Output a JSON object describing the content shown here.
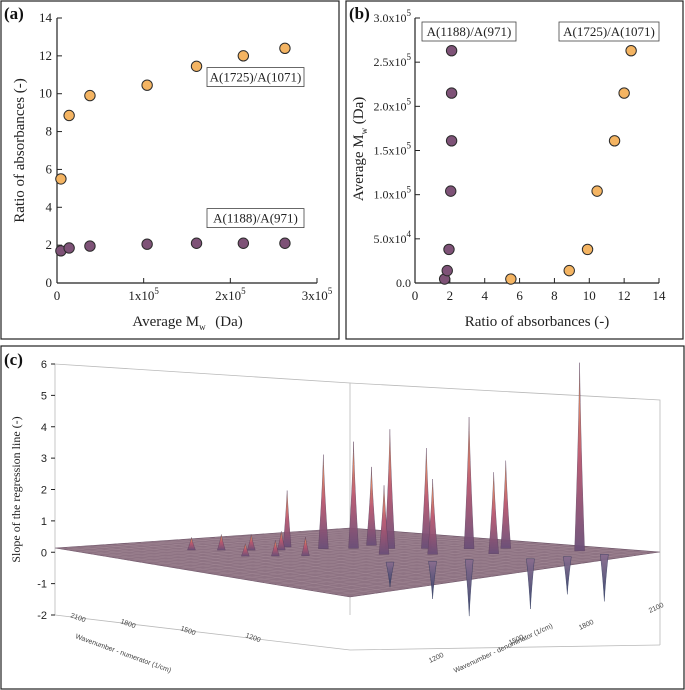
{
  "panels": {
    "a": "(a)",
    "b": "(b)",
    "c": "(c)"
  },
  "colors": {
    "orange": "#f4b462",
    "purple": "#7e5277",
    "marker_edge": "#2b2b2b"
  },
  "chart_data": [
    {
      "id": "a",
      "type": "scatter",
      "xlabel": "Average M",
      "xlabel_sub": "w",
      "xlabel_suffix": " (Da)",
      "ylabel": "Ratio of absorbances (-)",
      "xlim": [
        0,
        300000
      ],
      "ylim": [
        0,
        14
      ],
      "xticks": [
        {
          "v": 0,
          "base": "0",
          "exp": ""
        },
        {
          "v": 100000,
          "base": "1x10",
          "exp": "5"
        },
        {
          "v": 200000,
          "base": "2x10",
          "exp": "5"
        },
        {
          "v": 300000,
          "base": "3x10",
          "exp": "5"
        }
      ],
      "yticks": [
        0,
        2,
        4,
        6,
        8,
        10,
        12,
        14
      ],
      "series": [
        {
          "name": "A(1725)/A(1071)",
          "color": "orange",
          "x": [
            4500,
            14000,
            38000,
            104000,
            161000,
            215000,
            263000
          ],
          "y": [
            5.5,
            8.85,
            9.9,
            10.45,
            11.45,
            12.0,
            12.4
          ]
        },
        {
          "name": "A(1188)/A(971)",
          "color": "purple",
          "x": [
            4500,
            14000,
            38000,
            104000,
            161000,
            215000,
            263000
          ],
          "y": [
            1.7,
            1.85,
            1.95,
            2.05,
            2.1,
            2.1,
            2.1
          ]
        }
      ]
    },
    {
      "id": "b",
      "type": "scatter",
      "xlabel": "Ratio of absorbances (-)",
      "ylabel": "Average M",
      "ylabel_sub": "w",
      "ylabel_suffix": " (Da)",
      "xlim": [
        0,
        14
      ],
      "ylim": [
        0,
        300000
      ],
      "xticks": [
        0,
        2,
        4,
        6,
        8,
        10,
        12,
        14
      ],
      "yticks": [
        {
          "v": 0,
          "base": "0.0",
          "exp": ""
        },
        {
          "v": 50000,
          "base": "5.0x10",
          "exp": "4"
        },
        {
          "v": 100000,
          "base": "1.0x10",
          "exp": "5"
        },
        {
          "v": 150000,
          "base": "1.5x10",
          "exp": "5"
        },
        {
          "v": 200000,
          "base": "2.0x10",
          "exp": "5"
        },
        {
          "v": 250000,
          "base": "2.5x10",
          "exp": "5"
        },
        {
          "v": 300000,
          "base": "3.0x10",
          "exp": "5"
        }
      ],
      "series": [
        {
          "name": "A(1188)/A(971)",
          "color": "purple",
          "x": [
            1.7,
            1.85,
            1.95,
            2.05,
            2.1,
            2.1,
            2.1
          ],
          "y": [
            4500,
            14000,
            38000,
            104000,
            161000,
            215000,
            263000
          ]
        },
        {
          "name": "A(1725)/A(1071)",
          "color": "orange",
          "x": [
            5.5,
            8.85,
            9.9,
            10.45,
            11.45,
            12.0,
            12.4
          ],
          "y": [
            4500,
            14000,
            38000,
            104000,
            161000,
            215000,
            263000
          ]
        }
      ]
    },
    {
      "id": "c",
      "type": "surface",
      "zlabel": "Slope of the regression line (-)",
      "zlim": [
        -2,
        6
      ],
      "zticks": [
        -2,
        -1,
        0,
        1,
        2,
        3,
        4,
        5,
        6
      ],
      "xlabel": "Wavenumber - numerator (1/cm)",
      "ylabel": "Wavenumber - denominator (1/cm)",
      "xticks": [
        "2100",
        "1800",
        "1500",
        "1200"
      ],
      "yticks": [
        "1200",
        "1500",
        "1800",
        "2100"
      ],
      "peaks": [
        {
          "u": 0.92,
          "v": 0.18,
          "z": 6.0
        },
        {
          "u": 0.8,
          "v": 0.42,
          "z": 4.2
        },
        {
          "u": 0.74,
          "v": 0.5,
          "z": 3.2
        },
        {
          "u": 0.68,
          "v": 0.56,
          "z": 3.8
        },
        {
          "u": 0.62,
          "v": 0.62,
          "z": 3.4
        },
        {
          "u": 0.56,
          "v": 0.66,
          "z": 3.0
        },
        {
          "u": 0.86,
          "v": 0.36,
          "z": 2.8
        },
        {
          "u": 0.76,
          "v": 0.3,
          "z": 2.6
        },
        {
          "u": 0.66,
          "v": 0.4,
          "z": 2.4
        },
        {
          "u": 0.58,
          "v": 0.48,
          "z": 2.2
        },
        {
          "u": 0.7,
          "v": 0.64,
          "z": 2.5
        },
        {
          "u": 0.52,
          "v": 0.74,
          "z": 1.8
        },
        {
          "u": 0.46,
          "v": 0.7,
          "z": 0.6
        },
        {
          "u": 0.4,
          "v": 0.74,
          "z": 0.5
        },
        {
          "u": 0.34,
          "v": 0.78,
          "z": 0.5
        },
        {
          "u": 0.28,
          "v": 0.82,
          "z": 0.4
        },
        {
          "u": 0.42,
          "v": 0.58,
          "z": 0.6
        },
        {
          "u": 0.36,
          "v": 0.62,
          "z": 0.5
        },
        {
          "u": 0.3,
          "v": 0.66,
          "z": 0.4
        },
        {
          "u": 0.64,
          "v": 0.26,
          "z": -1.8
        },
        {
          "u": 0.74,
          "v": 0.16,
          "z": -1.6
        },
        {
          "u": 0.82,
          "v": 0.12,
          "z": -1.2
        },
        {
          "u": 0.56,
          "v": 0.3,
          "z": -1.2
        },
        {
          "u": 0.9,
          "v": 0.08,
          "z": -1.5
        },
        {
          "u": 0.48,
          "v": 0.36,
          "z": -0.8
        }
      ]
    }
  ]
}
